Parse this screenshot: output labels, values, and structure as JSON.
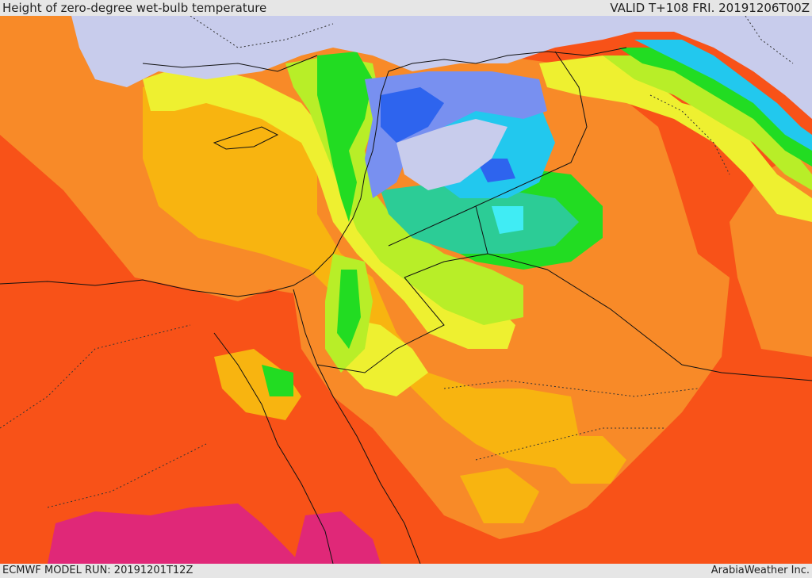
{
  "header": {
    "title": "Height of zero-degree wet-bulb temperature",
    "valid": "VALID T+108 FRI. 20191206T00Z"
  },
  "footer": {
    "model_run": "ECMWF MODEL RUN: 20191201T12Z",
    "credit": "ArabiaWeather Inc."
  },
  "colors": {
    "sea_cold": "#c8ccec",
    "blue_dark": "#2e64ee",
    "blue": "#7890f0",
    "cyan": "#22c8ee",
    "cyan_light": "#40ecf4",
    "teal": "#2ccc96",
    "green": "#22dc22",
    "green_light": "#78e62a",
    "lime": "#b8ee28",
    "yellow": "#eef030",
    "amber": "#f8b410",
    "orange": "#f88a28",
    "red_orange": "#f85218",
    "magenta": "#e02878",
    "border_line": "#111111"
  }
}
